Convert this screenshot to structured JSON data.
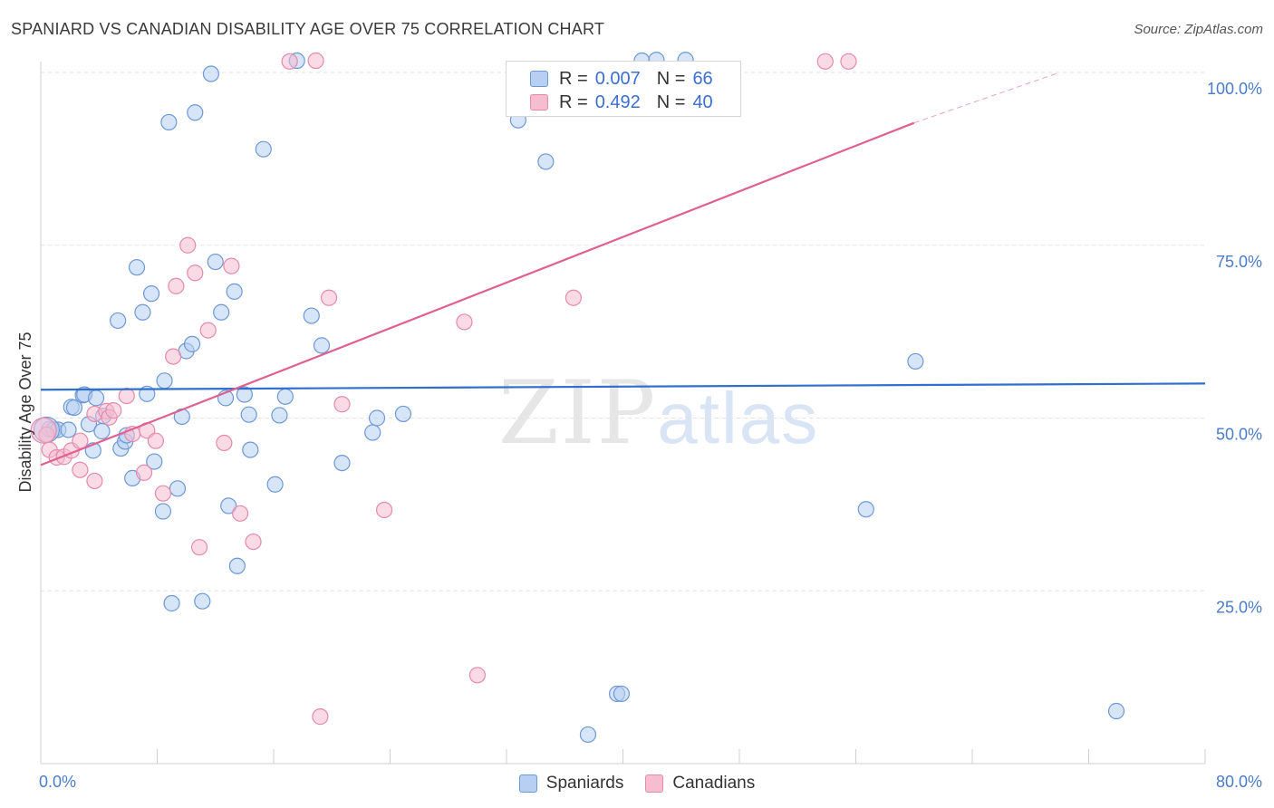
{
  "header": {
    "title": "SPANIARD VS CANADIAN DISABILITY AGE OVER 75 CORRELATION CHART",
    "source": "Source: ZipAtlas.com"
  },
  "legend_top": {
    "spaniards": {
      "r_label": "R =",
      "r_value": "0.007",
      "n_label": "N =",
      "n_value": "66"
    },
    "canadians": {
      "r_label": "R =",
      "r_value": "0.492",
      "n_label": "N =",
      "n_value": "40"
    }
  },
  "watermark": {
    "zip": "ZIP",
    "atlas": "atlas"
  },
  "colors": {
    "spaniards_fill": "#b7cff2",
    "spaniards_stroke": "#6d98d6",
    "spaniards_line": "#2f6fcd",
    "canadians_fill": "#f6bcd0",
    "canadians_stroke": "#e58aab",
    "canadians_line": "#e0608f",
    "axis_text": "#4a7cc9"
  },
  "chart_data": {
    "type": "scatter",
    "title": "SPANIARD VS CANADIAN DISABILITY AGE OVER 75 CORRELATION CHART",
    "xlabel": "",
    "ylabel": "Disability Age Over 75",
    "xlim": [
      0,
      80
    ],
    "ylim": [
      0,
      100
    ],
    "x_tick_labels": [
      "0.0%",
      "80.0%"
    ],
    "y_ticks": [
      25,
      50,
      75,
      100
    ],
    "y_tick_labels": [
      "25.0%",
      "50.0%",
      "75.0%",
      "100.0%"
    ],
    "legend": [
      "Spaniards",
      "Canadians"
    ],
    "series": [
      {
        "name": "Spaniards",
        "points": [
          [
            0.6,
            48.4
          ],
          [
            0.9,
            48.3
          ],
          [
            1.2,
            48.3
          ],
          [
            1.9,
            48.3
          ],
          [
            2.1,
            51.6
          ],
          [
            2.3,
            51.5
          ],
          [
            2.9,
            53.3
          ],
          [
            3.0,
            53.4
          ],
          [
            3.3,
            49.1
          ],
          [
            3.6,
            45.3
          ],
          [
            3.8,
            52.9
          ],
          [
            4.2,
            48.1
          ],
          [
            4.3,
            50.3
          ],
          [
            5.3,
            64.1
          ],
          [
            5.5,
            45.6
          ],
          [
            5.8,
            46.6
          ],
          [
            5.9,
            47.5
          ],
          [
            6.3,
            41.3
          ],
          [
            6.6,
            71.8
          ],
          [
            7.0,
            65.3
          ],
          [
            7.3,
            53.5
          ],
          [
            7.6,
            68.0
          ],
          [
            7.8,
            43.7
          ],
          [
            8.4,
            36.5
          ],
          [
            8.5,
            55.4
          ],
          [
            8.8,
            92.8
          ],
          [
            9.0,
            23.2
          ],
          [
            9.4,
            39.8
          ],
          [
            9.7,
            50.2
          ],
          [
            10.0,
            59.7
          ],
          [
            10.4,
            60.7
          ],
          [
            10.6,
            94.2
          ],
          [
            11.1,
            23.5
          ],
          [
            11.7,
            99.8
          ],
          [
            12.0,
            72.6
          ],
          [
            12.4,
            65.3
          ],
          [
            12.7,
            52.9
          ],
          [
            12.9,
            37.3
          ],
          [
            13.3,
            68.3
          ],
          [
            13.5,
            28.6
          ],
          [
            14.0,
            53.4
          ],
          [
            14.3,
            50.5
          ],
          [
            14.4,
            45.4
          ],
          [
            15.3,
            88.9
          ],
          [
            16.1,
            40.4
          ],
          [
            16.4,
            50.4
          ],
          [
            16.8,
            53.1
          ],
          [
            17.6,
            101.7
          ],
          [
            18.6,
            64.8
          ],
          [
            19.3,
            60.5
          ],
          [
            20.7,
            43.5
          ],
          [
            22.8,
            47.9
          ],
          [
            23.1,
            50.0
          ],
          [
            24.9,
            50.6
          ],
          [
            32.8,
            93.1
          ],
          [
            34.7,
            87.1
          ],
          [
            37.6,
            4.2
          ],
          [
            39.6,
            10.1
          ],
          [
            39.9,
            10.1
          ],
          [
            41.3,
            101.7
          ],
          [
            42.3,
            101.8
          ],
          [
            44.3,
            101.8
          ],
          [
            56.7,
            36.8
          ],
          [
            60.1,
            58.2
          ],
          [
            73.9,
            7.6
          ],
          [
            0.4,
            48.3
          ]
        ]
      },
      {
        "name": "Canadians",
        "points": [
          [
            0.4,
            47.6
          ],
          [
            0.6,
            45.4
          ],
          [
            1.1,
            44.3
          ],
          [
            1.6,
            44.4
          ],
          [
            2.1,
            45.3
          ],
          [
            2.7,
            46.7
          ],
          [
            2.7,
            42.5
          ],
          [
            3.7,
            40.9
          ],
          [
            3.7,
            50.6
          ],
          [
            4.5,
            51.0
          ],
          [
            4.7,
            50.1
          ],
          [
            5.0,
            51.1
          ],
          [
            5.9,
            53.2
          ],
          [
            6.3,
            47.7
          ],
          [
            7.1,
            42.1
          ],
          [
            7.3,
            48.2
          ],
          [
            7.9,
            46.7
          ],
          [
            8.4,
            39.1
          ],
          [
            9.1,
            58.9
          ],
          [
            9.3,
            69.1
          ],
          [
            10.1,
            75.0
          ],
          [
            10.6,
            71.0
          ],
          [
            10.9,
            31.3
          ],
          [
            11.5,
            62.7
          ],
          [
            12.6,
            46.4
          ],
          [
            13.1,
            72.0
          ],
          [
            13.7,
            36.2
          ],
          [
            14.6,
            32.1
          ],
          [
            17.1,
            101.6
          ],
          [
            18.9,
            101.7
          ],
          [
            19.2,
            6.8
          ],
          [
            19.8,
            67.4
          ],
          [
            20.7,
            52.0
          ],
          [
            23.6,
            36.7
          ],
          [
            29.1,
            63.9
          ],
          [
            30.0,
            12.8
          ],
          [
            36.6,
            67.4
          ],
          [
            53.9,
            101.6
          ],
          [
            55.5,
            101.6
          ],
          [
            0.2,
            48.2
          ]
        ]
      }
    ],
    "trend_lines": [
      {
        "name": "Spaniards",
        "x": [
          0,
          80
        ],
        "y": [
          54.1,
          55.0
        ]
      },
      {
        "name": "Canadians",
        "x": [
          0,
          60
        ],
        "y": [
          43.2,
          92.7
        ],
        "dashed_extension_to": [
          70,
          100
        ]
      }
    ]
  }
}
